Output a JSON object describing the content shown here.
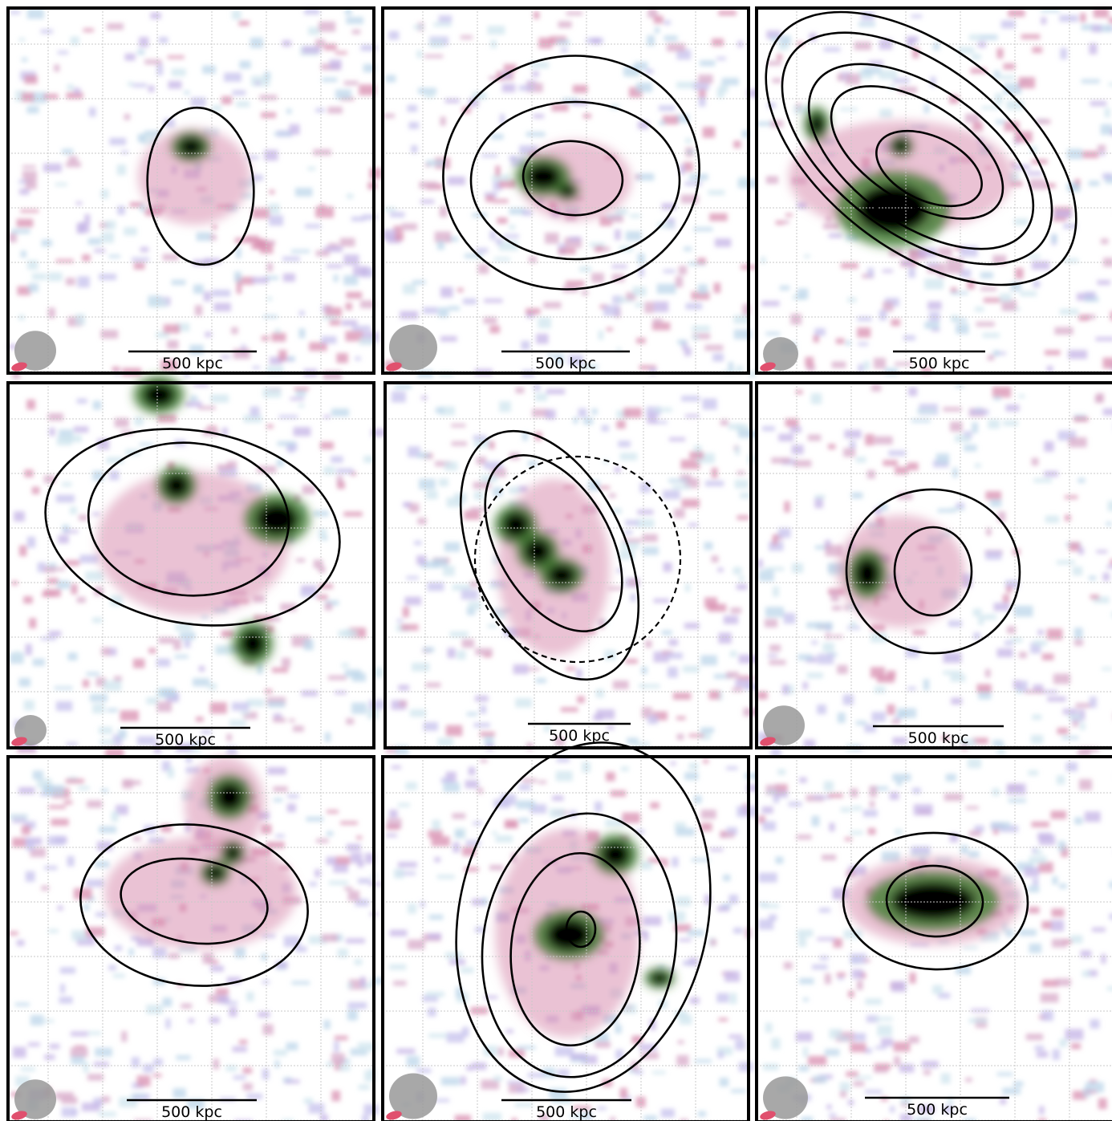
{
  "panels": [
    {
      "scale_label": "500 kpc"
    },
    {
      "scale_label": "500 kpc"
    },
    {
      "scale_label": "500 kpc"
    },
    {
      "scale_label": "500 kpc"
    },
    {
      "scale_label": "500 kpc"
    },
    {
      "scale_label": "500 kpc"
    },
    {
      "scale_label": "500 kpc"
    },
    {
      "scale_label": "500 kpc"
    },
    {
      "scale_label": "500 kpc"
    }
  ]
}
